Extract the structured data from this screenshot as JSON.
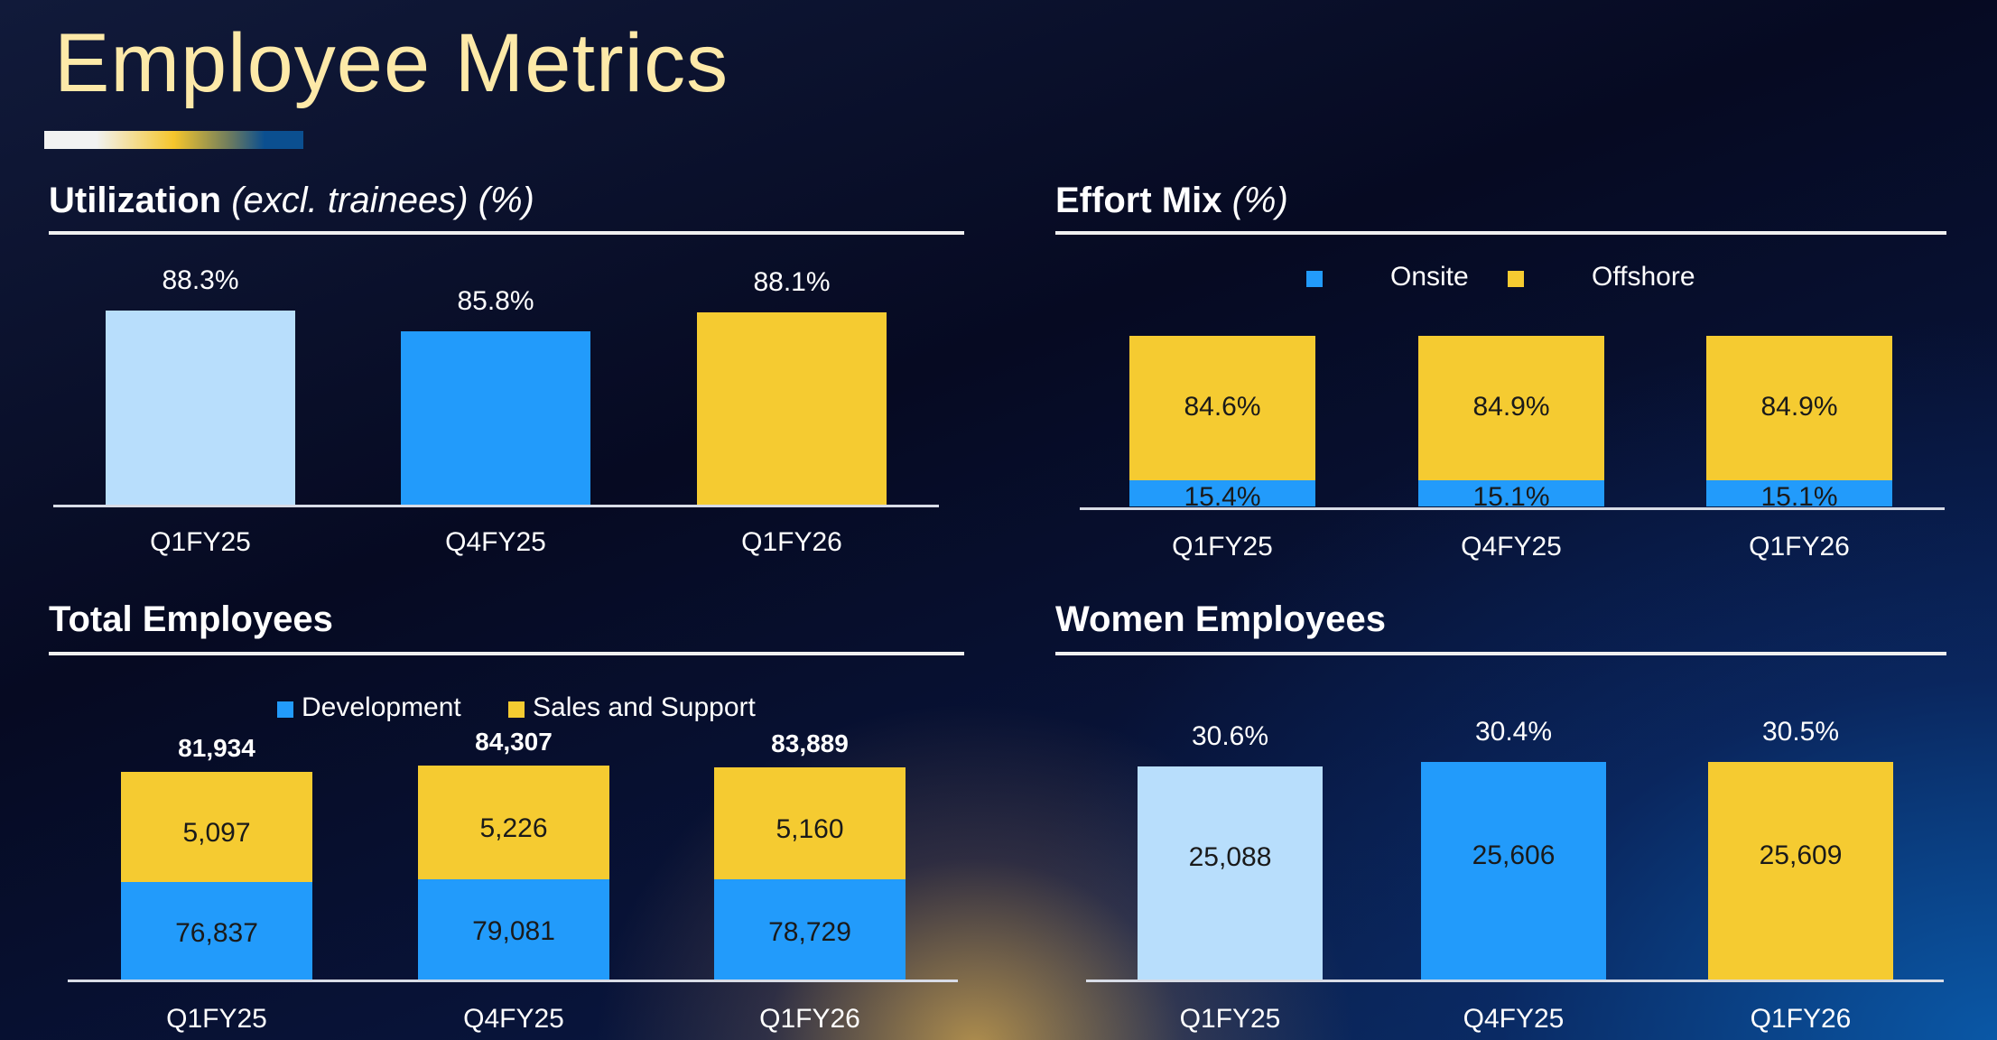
{
  "page": {
    "title": "Employee Metrics"
  },
  "colors": {
    "light_blue": "#b8defc",
    "blue": "#229bfb",
    "yellow": "#f5cb31",
    "title": "#fde9a8"
  },
  "chart_data": [
    {
      "type": "bar",
      "title": "Utilization",
      "title_suffix": "(excl. trainees) (%)",
      "categories": [
        "Q1FY25",
        "Q4FY25",
        "Q1FY26"
      ],
      "values": [
        88.3,
        85.8,
        88.1
      ],
      "value_labels": [
        "88.3%",
        "85.8%",
        "88.1%"
      ],
      "bar_colors": [
        "#b8defc",
        "#229bfb",
        "#f5cb31"
      ]
    },
    {
      "type": "bar",
      "stacked": true,
      "title": "Effort Mix",
      "title_suffix": "(%)",
      "legend": [
        "Onsite",
        "Offshore"
      ],
      "legend_position": "top-center",
      "categories": [
        "Q1FY25",
        "Q4FY25",
        "Q1FY26"
      ],
      "series": [
        {
          "name": "Onsite",
          "color": "#229bfb",
          "values": [
            15.4,
            15.1,
            15.1
          ],
          "labels": [
            "15.4%",
            "15.1%",
            "15.1%"
          ]
        },
        {
          "name": "Offshore",
          "color": "#f5cb31",
          "values": [
            84.6,
            84.9,
            84.9
          ],
          "labels": [
            "84.6%",
            "84.9%",
            "84.9%"
          ]
        }
      ]
    },
    {
      "type": "bar",
      "stacked": true,
      "title": "Total Employees",
      "legend": [
        "Development",
        "Sales and Support"
      ],
      "legend_position": "top-center",
      "categories": [
        "Q1FY25",
        "Q4FY25",
        "Q1FY26"
      ],
      "totals": [
        81934,
        84307,
        83889
      ],
      "total_labels": [
        "81,934",
        "84,307",
        "83,889"
      ],
      "series": [
        {
          "name": "Development",
          "color": "#229bfb",
          "values": [
            76837,
            79081,
            78729
          ],
          "labels": [
            "76,837",
            "79,081",
            "78,729"
          ]
        },
        {
          "name": "Sales and Support",
          "color": "#f5cb31",
          "values": [
            5097,
            5226,
            5160
          ],
          "labels": [
            "5,097",
            "5,226",
            "5,160"
          ]
        }
      ]
    },
    {
      "type": "bar",
      "title": "Women Employees",
      "categories": [
        "Q1FY25",
        "Q4FY25",
        "Q1FY26"
      ],
      "values": [
        25088,
        25606,
        25609
      ],
      "value_labels": [
        "25,088",
        "25,606",
        "25,609"
      ],
      "percent_labels": [
        "30.6%",
        "30.4%",
        "30.5%"
      ],
      "bar_colors": [
        "#b8defc",
        "#229bfb",
        "#f5cb31"
      ]
    }
  ]
}
